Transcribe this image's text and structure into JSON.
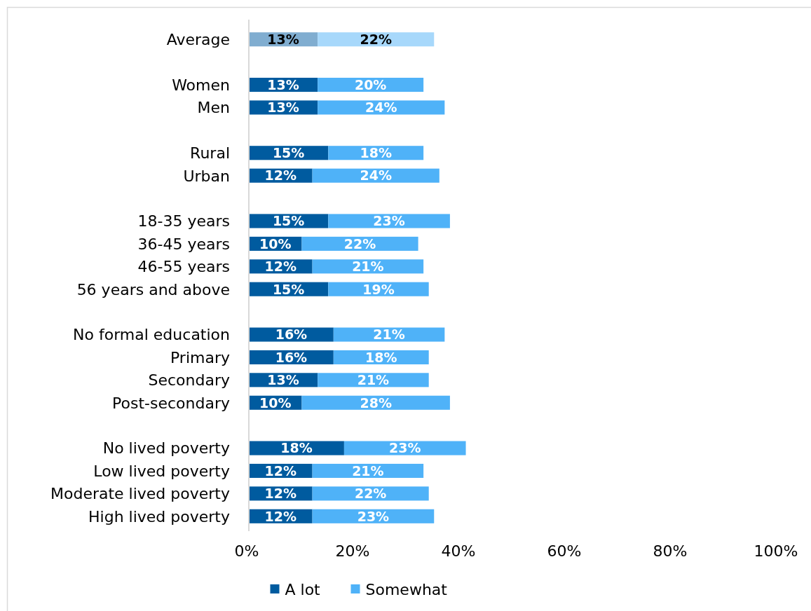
{
  "chart_data": {
    "type": "bar",
    "orientation": "horizontal",
    "stacked": true,
    "categories": [
      "Average",
      null,
      "Women",
      "Men",
      null,
      "Rural",
      "Urban",
      null,
      "18-35 years",
      "36-45 years",
      "46-55 years",
      "56 years and above",
      null,
      "No formal education",
      "Primary",
      "Secondary",
      "Post-secondary",
      null,
      "No lived poverty",
      "Low lived poverty",
      "Moderate lived poverty",
      "High lived poverty"
    ],
    "series": [
      {
        "name": "A lot",
        "color": "#005b9f",
        "colors": [
          "#80add0",
          null,
          "#005b9f",
          "#005b9f",
          null,
          "#005b9f",
          "#005b9f",
          null,
          "#005b9f",
          "#005b9f",
          "#005b9f",
          "#005b9f",
          null,
          "#005b9f",
          "#005b9f",
          "#005b9f",
          "#005b9f",
          null,
          "#005b9f",
          "#005b9f",
          "#005b9f",
          "#005b9f"
        ],
        "values": [
          13,
          null,
          13,
          13,
          null,
          15,
          12,
          null,
          15,
          10,
          12,
          15,
          null,
          16,
          16,
          13,
          10,
          null,
          18,
          12,
          12,
          12
        ],
        "value_labels": [
          "13%",
          null,
          "13%",
          "13%",
          null,
          "15%",
          "12%",
          null,
          "15%",
          "10%",
          "12%",
          "15%",
          null,
          "16%",
          "16%",
          "13%",
          "10%",
          null,
          "18%",
          "12%",
          "12%",
          "12%"
        ]
      },
      {
        "name": "Somewhat",
        "color": "#4fb2f8",
        "colors": [
          "#a7d8fb",
          null,
          "#4fb2f8",
          "#4fb2f8",
          null,
          "#4fb2f8",
          "#4fb2f8",
          null,
          "#4fb2f8",
          "#4fb2f8",
          "#4fb2f8",
          "#4fb2f8",
          null,
          "#4fb2f8",
          "#4fb2f8",
          "#4fb2f8",
          "#4fb2f8",
          null,
          "#4fb2f8",
          "#4fb2f8",
          "#4fb2f8",
          "#4fb2f8"
        ],
        "values": [
          22,
          null,
          20,
          24,
          null,
          18,
          24,
          null,
          23,
          22,
          21,
          19,
          null,
          21,
          18,
          21,
          28,
          null,
          23,
          21,
          22,
          23
        ],
        "value_labels": [
          "22%",
          null,
          "20%",
          "24%",
          null,
          "18%",
          "24%",
          null,
          "23%",
          "22%",
          "21%",
          "19%",
          null,
          "21%",
          "18%",
          "21%",
          "28%",
          null,
          "23%",
          "21%",
          "22%",
          "23%"
        ]
      }
    ],
    "xlim": [
      0,
      100
    ],
    "xticks": [
      {
        "value": 0,
        "label": "0%"
      },
      {
        "value": 20,
        "label": "20%"
      },
      {
        "value": 40,
        "label": "40%"
      },
      {
        "value": 60,
        "label": "60%"
      },
      {
        "value": 80,
        "label": "80%"
      },
      {
        "value": 100,
        "label": "100%"
      }
    ],
    "legend": "bottom"
  }
}
